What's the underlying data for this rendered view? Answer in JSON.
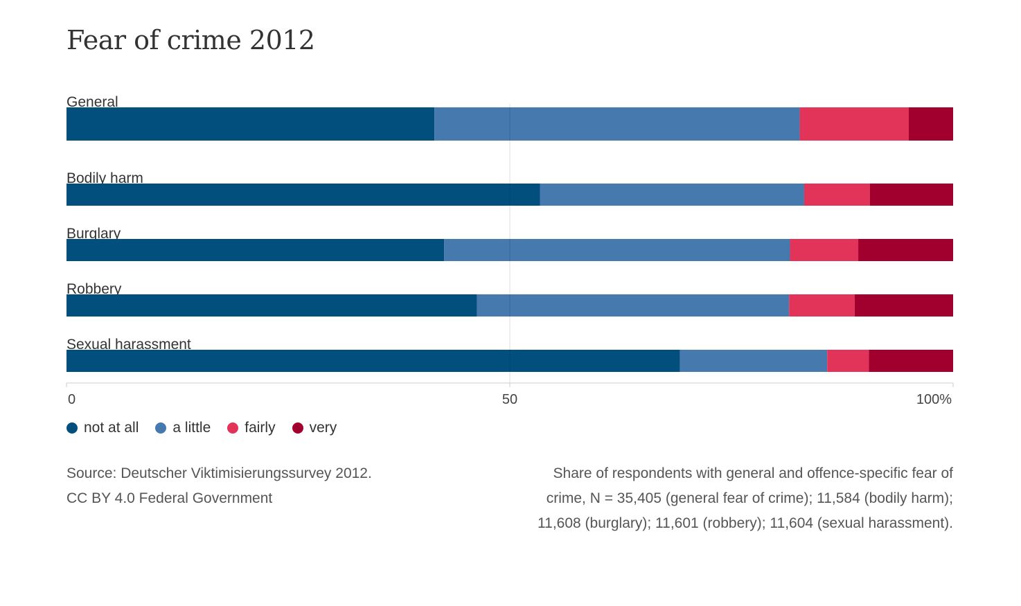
{
  "chart_data": {
    "type": "bar",
    "orientation": "horizontal",
    "stacked": true,
    "title": "Fear of crime 2012",
    "categories": [
      "General",
      "Bodily harm",
      "Burglary",
      "Robbery",
      "Sexual harassment"
    ],
    "series": [
      {
        "name": "not at all",
        "color": "#024f7d",
        "values": [
          41.5,
          53.4,
          42.6,
          46.3,
          69.2
        ]
      },
      {
        "name": "a little",
        "color": "#4679ae",
        "values": [
          41.2,
          29.8,
          39.0,
          35.2,
          16.6
        ]
      },
      {
        "name": "fairly",
        "color": "#e23359",
        "values": [
          12.3,
          7.4,
          7.7,
          7.4,
          4.7
        ]
      },
      {
        "name": "very",
        "color": "#a1002f",
        "values": [
          5.0,
          9.4,
          10.7,
          11.1,
          9.5
        ]
      }
    ],
    "xlim": [
      0,
      100
    ],
    "xticks": [
      {
        "value": 0,
        "label": "0"
      },
      {
        "value": 50,
        "label": "50"
      },
      {
        "value": 100,
        "label": "100%"
      }
    ],
    "grid": true,
    "legend_position": "bottom-left"
  },
  "footer": {
    "source_lines": [
      "Source: Deutscher Viktimisierungssurvey 2012.",
      "CC BY 4.0 Federal Government"
    ],
    "note_lines": [
      "Share of respondents with general and offence-specific fear of",
      "crime, N = 35,405 (general fear of crime); 11,584 (bodily harm);",
      "11,608 (burglary); 11,601 (robbery); 11,604 (sexual harassment)."
    ]
  }
}
